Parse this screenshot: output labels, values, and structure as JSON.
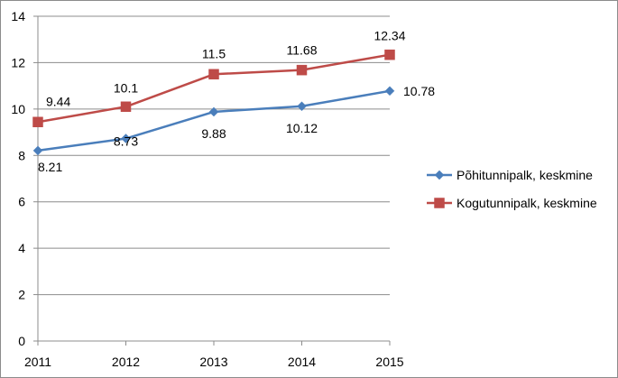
{
  "chart_data": {
    "type": "line",
    "categories": [
      "2011",
      "2012",
      "2013",
      "2014",
      "2015"
    ],
    "series": [
      {
        "name": "Põhitunnipalk, keskmine",
        "values": [
          8.21,
          8.73,
          9.88,
          10.12,
          10.78
        ],
        "labels": [
          "8.21",
          "8.73",
          "9.88",
          "10.12",
          "10.78"
        ],
        "color": "#4a7ebb",
        "marker": "diamond"
      },
      {
        "name": "Kogutunnipalk, keskmine",
        "values": [
          9.44,
          10.1,
          11.5,
          11.68,
          12.34
        ],
        "labels": [
          "9.44",
          "10.1",
          "11.5",
          "11.68",
          "12.34"
        ],
        "color": "#be4b48",
        "marker": "square"
      }
    ],
    "yticks": [
      "0",
      "2",
      "4",
      "6",
      "8",
      "10",
      "12",
      "14"
    ],
    "ylim": [
      0,
      14
    ],
    "grid": true,
    "legend_position": "right"
  }
}
